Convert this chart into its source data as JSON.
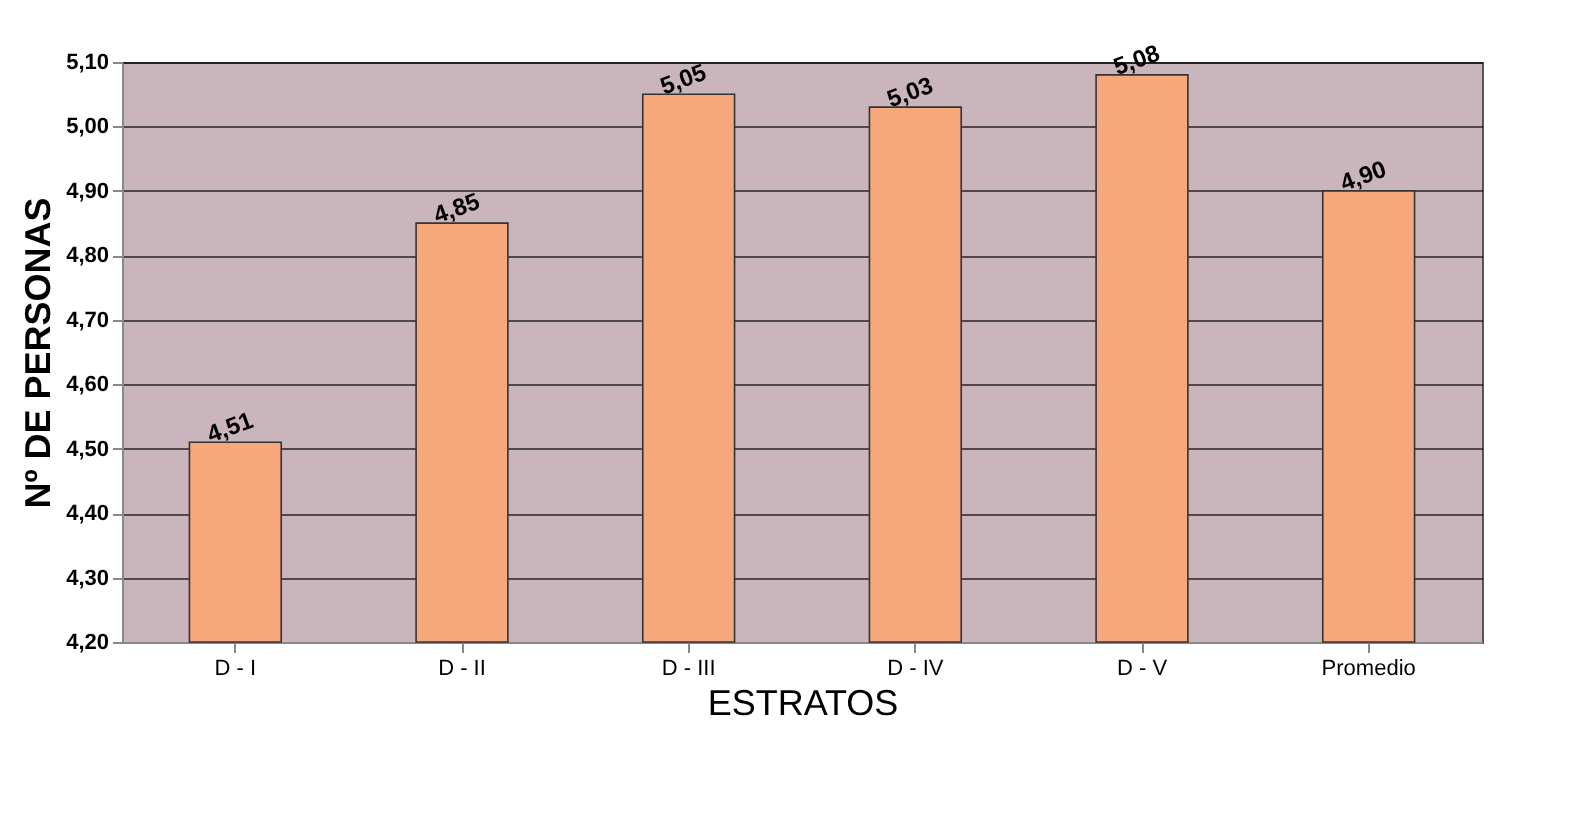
{
  "chart_data": {
    "type": "bar",
    "xlabel": "ESTRATOS",
    "ylabel": "Nº DE  PERSONAS",
    "categories": [
      "D - I",
      "D - II",
      "D - III",
      "D - IV",
      "D - V",
      "Promedio"
    ],
    "values": [
      4.51,
      4.85,
      5.05,
      5.03,
      5.08,
      4.9
    ],
    "value_labels": [
      "4,51",
      "4,85",
      "5,05",
      "5,03",
      "5,08",
      "4,90"
    ],
    "color": "#f7a77c",
    "ylim": [
      4.2,
      5.1
    ],
    "yticks": [
      {
        "value": 4.2,
        "label": "4,20"
      },
      {
        "value": 4.3,
        "label": "4,30"
      },
      {
        "value": 4.4,
        "label": "4,40"
      },
      {
        "value": 4.5,
        "label": "4,50"
      },
      {
        "value": 4.6,
        "label": "4,60"
      },
      {
        "value": 4.7,
        "label": "4,70"
      },
      {
        "value": 4.8,
        "label": "4,80"
      },
      {
        "value": 4.9,
        "label": "4,90"
      },
      {
        "value": 5.0,
        "label": "5,00"
      },
      {
        "value": 5.1,
        "label": "5,10"
      }
    ],
    "grid": "y"
  }
}
